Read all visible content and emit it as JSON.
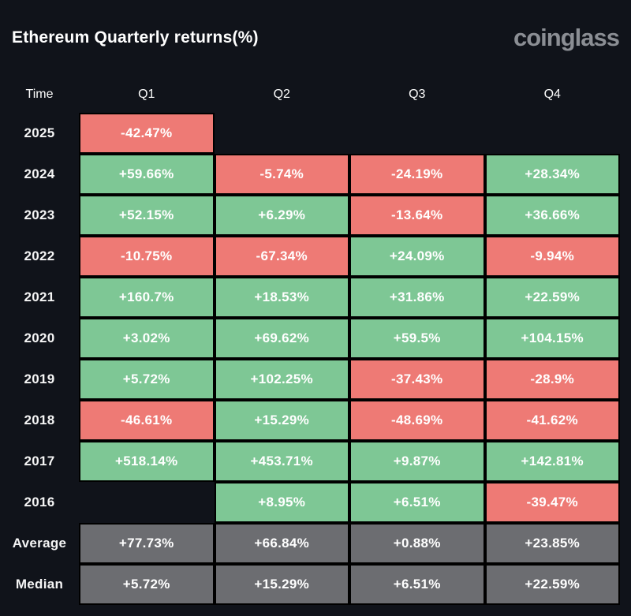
{
  "header": {
    "title": "Ethereum Quarterly returns(%)",
    "logo": "coinglass"
  },
  "colors": {
    "background": "#10131a",
    "cell_gap": "#000000",
    "positive": "#7ec795",
    "negative": "#ee7a75",
    "summary": "#6c6d71",
    "text": "#ffffff",
    "logo": "#8b8e94"
  },
  "chart_data": {
    "type": "table",
    "title": "Ethereum Quarterly returns(%)",
    "columns": [
      "Time",
      "Q1",
      "Q2",
      "Q3",
      "Q4"
    ],
    "rows": [
      {
        "label": "2025",
        "kind": "year",
        "values": [
          "-42.47%",
          null,
          null,
          null
        ]
      },
      {
        "label": "2024",
        "kind": "year",
        "values": [
          "+59.66%",
          "-5.74%",
          "-24.19%",
          "+28.34%"
        ]
      },
      {
        "label": "2023",
        "kind": "year",
        "values": [
          "+52.15%",
          "+6.29%",
          "-13.64%",
          "+36.66%"
        ]
      },
      {
        "label": "2022",
        "kind": "year",
        "values": [
          "-10.75%",
          "-67.34%",
          "+24.09%",
          "-9.94%"
        ]
      },
      {
        "label": "2021",
        "kind": "year",
        "values": [
          "+160.7%",
          "+18.53%",
          "+31.86%",
          "+22.59%"
        ]
      },
      {
        "label": "2020",
        "kind": "year",
        "values": [
          "+3.02%",
          "+69.62%",
          "+59.5%",
          "+104.15%"
        ]
      },
      {
        "label": "2019",
        "kind": "year",
        "values": [
          "+5.72%",
          "+102.25%",
          "-37.43%",
          "-28.9%"
        ]
      },
      {
        "label": "2018",
        "kind": "year",
        "values": [
          "-46.61%",
          "+15.29%",
          "-48.69%",
          "-41.62%"
        ]
      },
      {
        "label": "2017",
        "kind": "year",
        "values": [
          "+518.14%",
          "+453.71%",
          "+9.87%",
          "+142.81%"
        ]
      },
      {
        "label": "2016",
        "kind": "year",
        "values": [
          null,
          "+8.95%",
          "+6.51%",
          "-39.47%"
        ]
      },
      {
        "label": "Average",
        "kind": "summary",
        "values": [
          "+77.73%",
          "+66.84%",
          "+0.88%",
          "+23.85%"
        ]
      },
      {
        "label": "Median",
        "kind": "summary",
        "values": [
          "+5.72%",
          "+15.29%",
          "+6.51%",
          "+22.59%"
        ]
      }
    ],
    "color_coding": "green = positive return, red = negative return, gray = summary rows"
  }
}
